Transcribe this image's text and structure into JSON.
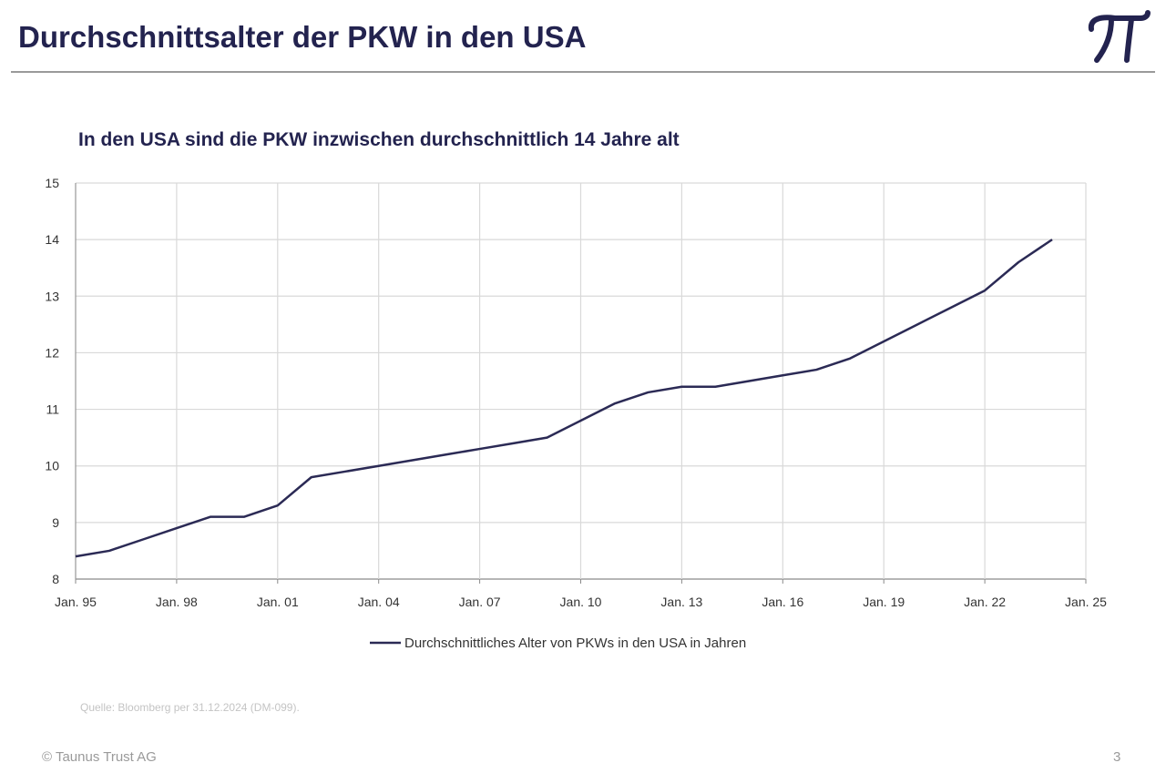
{
  "header": {
    "title": "Durchschnittsalter der PKW in den USA",
    "logo": "TT"
  },
  "footer": {
    "source": "Quelle: Bloomberg per 31.12.2024 (DM-099).",
    "copyright": "© Taunus Trust AG",
    "page": "3"
  },
  "colors": {
    "navy": "#23234f",
    "line": "#2b2a55",
    "grid": "#d9d9d9"
  },
  "chart_data": {
    "type": "line",
    "title": "In den USA sind die PKW inzwischen durchschnittlich 14 Jahre alt",
    "xlabel": "",
    "ylabel": "",
    "ylim": [
      8,
      15
    ],
    "yticks": [
      "8",
      "9",
      "10",
      "11",
      "12",
      "13",
      "14",
      "15"
    ],
    "xlim": [
      1995,
      2025
    ],
    "xticks": [
      {
        "year": 1995,
        "label": "Jan. 95"
      },
      {
        "year": 1998,
        "label": "Jan. 98"
      },
      {
        "year": 2001,
        "label": "Jan. 01"
      },
      {
        "year": 2004,
        "label": "Jan. 04"
      },
      {
        "year": 2007,
        "label": "Jan. 07"
      },
      {
        "year": 2010,
        "label": "Jan. 10"
      },
      {
        "year": 2013,
        "label": "Jan. 13"
      },
      {
        "year": 2016,
        "label": "Jan. 16"
      },
      {
        "year": 2019,
        "label": "Jan. 19"
      },
      {
        "year": 2022,
        "label": "Jan. 22"
      },
      {
        "year": 2025,
        "label": "Jan. 25"
      }
    ],
    "grid": true,
    "legend_position": "bottom",
    "series": [
      {
        "name": "Durchschnittliches Alter von PKWs in den USA in Jahren",
        "x": [
          1995,
          1996,
          1997,
          1998,
          1999,
          2000,
          2001,
          2002,
          2003,
          2004,
          2005,
          2006,
          2007,
          2008,
          2009,
          2010,
          2011,
          2012,
          2013,
          2014,
          2015,
          2016,
          2017,
          2018,
          2019,
          2020,
          2021,
          2022,
          2023,
          2024
        ],
        "values": [
          8.4,
          8.5,
          8.7,
          8.9,
          9.1,
          9.1,
          9.3,
          9.8,
          9.9,
          10.0,
          10.1,
          10.2,
          10.3,
          10.4,
          10.5,
          10.8,
          11.1,
          11.3,
          11.4,
          11.4,
          11.5,
          11.6,
          11.7,
          11.9,
          12.2,
          12.5,
          12.8,
          13.1,
          13.6,
          14.0
        ]
      }
    ]
  }
}
